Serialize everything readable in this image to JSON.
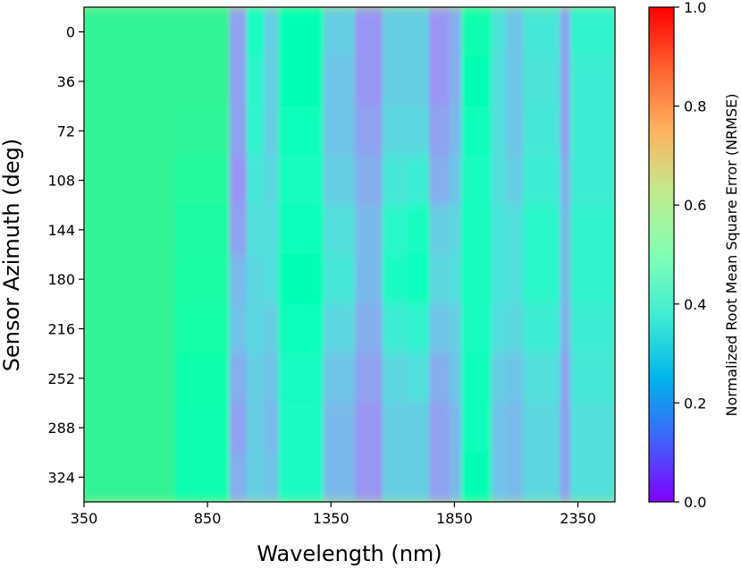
{
  "chart_data": {
    "type": "heatmap",
    "xlabel": "Wavelength (nm)",
    "ylabel": "Sensor Azimuth (deg)",
    "colorbar_label": "Normalized Root Mean Square Error (NRMSE)",
    "colormap": "rainbow",
    "xlim": [
      350,
      2500
    ],
    "ylim": [
      342,
      -18
    ],
    "x_ticks": [
      350,
      850,
      1350,
      1850,
      2350
    ],
    "x_tick_labels": [
      "350",
      "850",
      "1350",
      "1850",
      "2350"
    ],
    "y_ticks": [
      0,
      36,
      72,
      108,
      144,
      180,
      216,
      252,
      288,
      324
    ],
    "y_tick_labels": [
      "0",
      "36",
      "72",
      "108",
      "144",
      "180",
      "216",
      "252",
      "288",
      "324"
    ],
    "colorbar_ticks": [
      0.0,
      0.2,
      0.4,
      0.6,
      0.8,
      1.0
    ],
    "colorbar_tick_labels": [
      "0.0",
      "0.2",
      "0.4",
      "0.6",
      "0.8",
      "1.0"
    ],
    "clim": [
      0.0,
      1.0
    ],
    "row_azimuths": [
      0,
      36,
      72,
      108,
      144,
      180,
      216,
      252,
      288,
      324
    ],
    "wavelength_bands": [
      {
        "range": [
          350,
          720
        ],
        "nrmse": [
          0.6,
          0.6,
          0.6,
          0.6,
          0.6,
          0.6,
          0.6,
          0.6,
          0.6,
          0.6
        ]
      },
      {
        "range": [
          720,
          940
        ],
        "nrmse": [
          0.6,
          0.6,
          0.59,
          0.57,
          0.56,
          0.55,
          0.54,
          0.53,
          0.52,
          0.52
        ]
      },
      {
        "range": [
          940,
          1010
        ],
        "nrmse": [
          0.22,
          0.22,
          0.22,
          0.2,
          0.22,
          0.26,
          0.28,
          0.24,
          0.22,
          0.24
        ]
      },
      {
        "range": [
          1010,
          1080
        ],
        "nrmse": [
          0.45,
          0.42,
          0.4,
          0.36,
          0.34,
          0.32,
          0.32,
          0.3,
          0.3,
          0.3
        ]
      },
      {
        "range": [
          1080,
          1140
        ],
        "nrmse": [
          0.3,
          0.3,
          0.3,
          0.32,
          0.34,
          0.34,
          0.3,
          0.28,
          0.26,
          0.28
        ]
      },
      {
        "range": [
          1140,
          1320
        ],
        "nrmse": [
          0.5,
          0.5,
          0.48,
          0.46,
          0.48,
          0.5,
          0.48,
          0.45,
          0.44,
          0.44
        ]
      },
      {
        "range": [
          1320,
          1450
        ],
        "nrmse": [
          0.3,
          0.28,
          0.28,
          0.3,
          0.34,
          0.36,
          0.32,
          0.28,
          0.26,
          0.26
        ]
      },
      {
        "range": [
          1450,
          1560
        ],
        "nrmse": [
          0.2,
          0.2,
          0.22,
          0.24,
          0.26,
          0.26,
          0.24,
          0.22,
          0.2,
          0.2
        ]
      },
      {
        "range": [
          1560,
          1660
        ],
        "nrmse": [
          0.3,
          0.3,
          0.32,
          0.36,
          0.42,
          0.44,
          0.38,
          0.32,
          0.3,
          0.3
        ]
      },
      {
        "range": [
          1660,
          1750
        ],
        "nrmse": [
          0.3,
          0.3,
          0.32,
          0.38,
          0.46,
          0.48,
          0.4,
          0.34,
          0.3,
          0.3
        ]
      },
      {
        "range": [
          1750,
          1830
        ],
        "nrmse": [
          0.2,
          0.2,
          0.22,
          0.24,
          0.3,
          0.32,
          0.28,
          0.24,
          0.22,
          0.22
        ]
      },
      {
        "range": [
          1830,
          1880
        ],
        "nrmse": [
          0.24,
          0.24,
          0.26,
          0.28,
          0.32,
          0.34,
          0.3,
          0.28,
          0.26,
          0.26
        ]
      },
      {
        "range": [
          1880,
          2000
        ],
        "nrmse": [
          0.52,
          0.5,
          0.48,
          0.46,
          0.46,
          0.46,
          0.46,
          0.48,
          0.48,
          0.5
        ]
      },
      {
        "range": [
          2000,
          2060
        ],
        "nrmse": [
          0.35,
          0.34,
          0.34,
          0.34,
          0.36,
          0.36,
          0.34,
          0.3,
          0.28,
          0.28
        ]
      },
      {
        "range": [
          2060,
          2130
        ],
        "nrmse": [
          0.28,
          0.28,
          0.28,
          0.3,
          0.34,
          0.34,
          0.32,
          0.28,
          0.26,
          0.26
        ]
      },
      {
        "range": [
          2130,
          2280
        ],
        "nrmse": [
          0.36,
          0.35,
          0.36,
          0.38,
          0.42,
          0.42,
          0.38,
          0.34,
          0.32,
          0.32
        ]
      },
      {
        "range": [
          2280,
          2320
        ],
        "nrmse": [
          0.22,
          0.22,
          0.22,
          0.24,
          0.26,
          0.26,
          0.24,
          0.22,
          0.22,
          0.22
        ]
      },
      {
        "range": [
          2320,
          2500
        ],
        "nrmse": [
          0.4,
          0.38,
          0.38,
          0.38,
          0.4,
          0.4,
          0.38,
          0.36,
          0.34,
          0.34
        ]
      }
    ]
  }
}
